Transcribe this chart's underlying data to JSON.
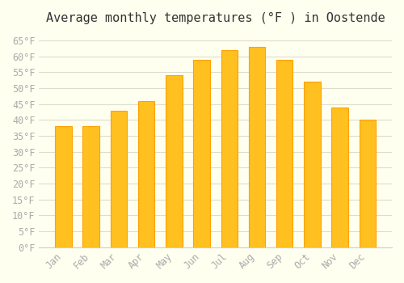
{
  "title": "Average monthly temperatures (°F ) in Oostende",
  "months": [
    "Jan",
    "Feb",
    "Mar",
    "Apr",
    "May",
    "Jun",
    "Jul",
    "Aug",
    "Sep",
    "Oct",
    "Nov",
    "Dec"
  ],
  "values": [
    38,
    38,
    43,
    46,
    54,
    59,
    62,
    63,
    59,
    52,
    44,
    40
  ],
  "bar_color": "#FFC020",
  "bar_edge_color": "#FFA000",
  "background_color": "#FFFFF0",
  "grid_color": "#DDDDCC",
  "ylim": [
    0,
    68
  ],
  "yticks": [
    0,
    5,
    10,
    15,
    20,
    25,
    30,
    35,
    40,
    45,
    50,
    55,
    60,
    65
  ],
  "tick_label_color": "#AAAAAA",
  "title_fontsize": 11,
  "tick_fontsize": 8.5
}
